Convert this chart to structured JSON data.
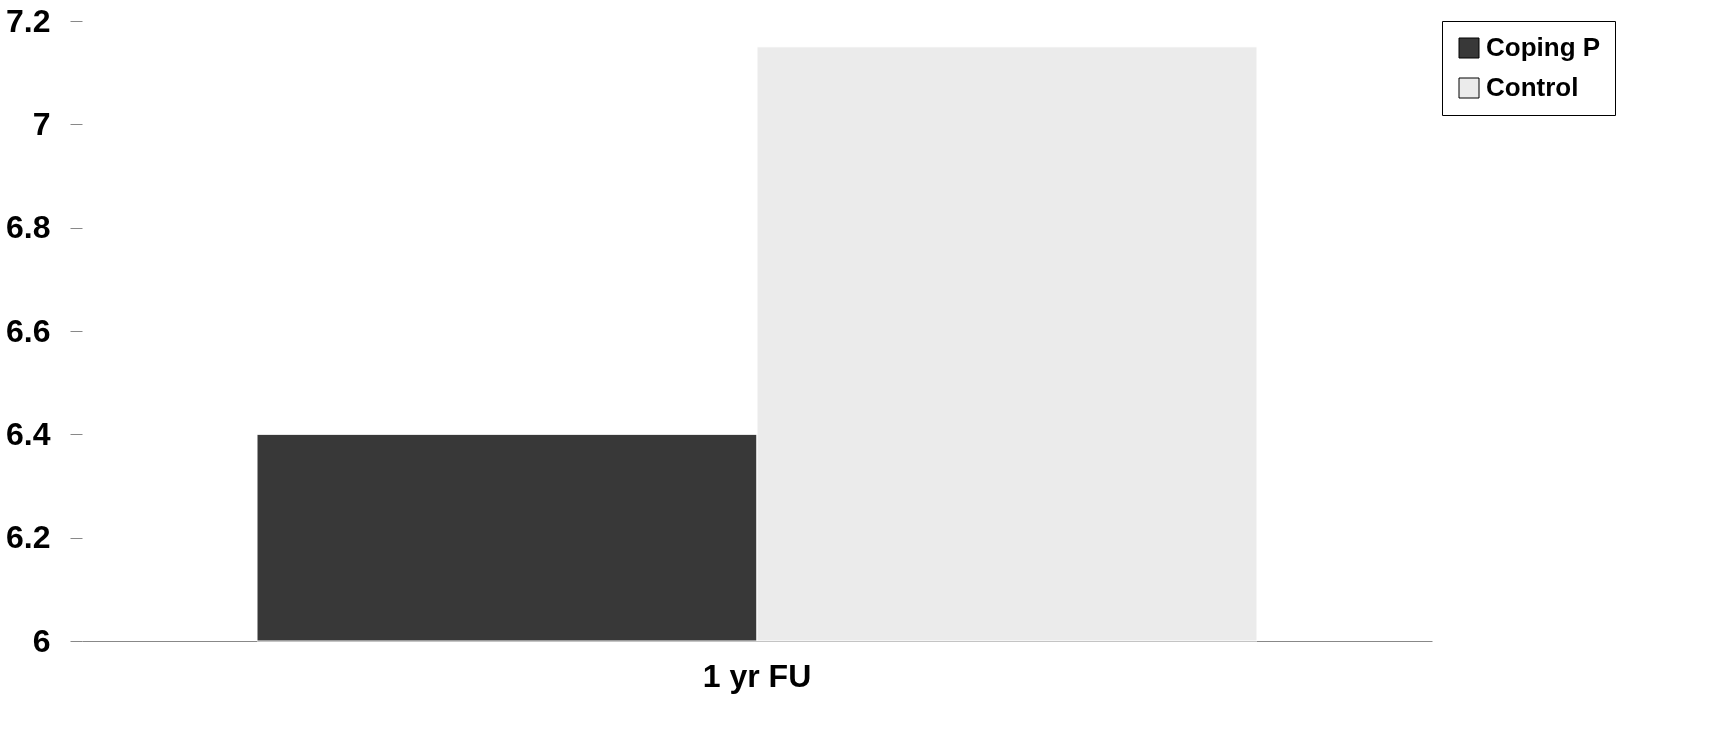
{
  "chart_data": {
    "type": "bar",
    "categories": [
      "1 yr FU"
    ],
    "series": [
      {
        "name": "Coping P",
        "color": "#383838",
        "values": [
          6.4
        ]
      },
      {
        "name": "Control",
        "color": "#ebebeb",
        "values": [
          7.15
        ]
      }
    ],
    "ylim": [
      6,
      7.2
    ],
    "yticks": [
      6,
      6.2,
      6.4,
      6.6,
      6.8,
      7,
      7.2
    ],
    "grid": false,
    "legend": "right"
  }
}
